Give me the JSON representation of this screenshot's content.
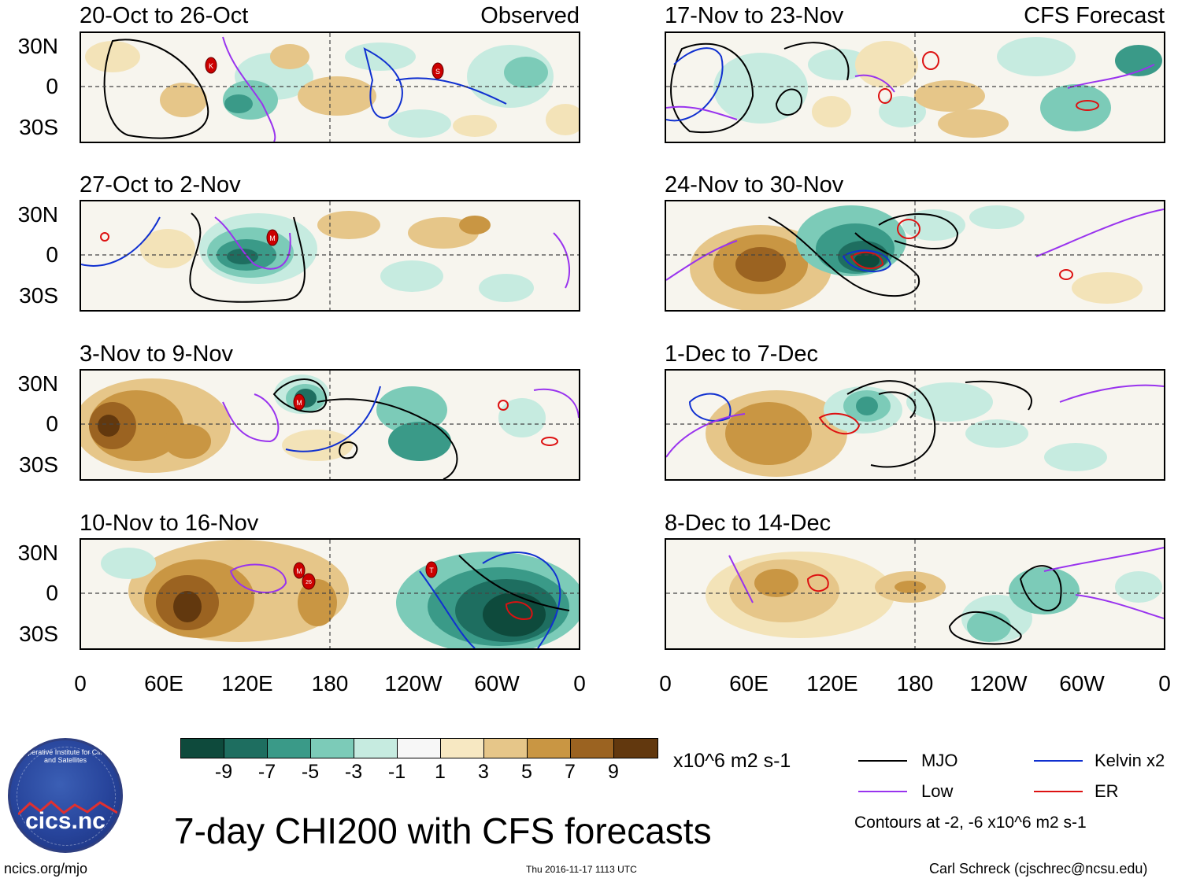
{
  "panels": [
    {
      "id": "p1",
      "title": "20-Oct to 26-Oct",
      "tag": "Observed"
    },
    {
      "id": "p2",
      "title": "27-Oct to 2-Nov",
      "tag": ""
    },
    {
      "id": "p3",
      "title": "3-Nov to 9-Nov",
      "tag": ""
    },
    {
      "id": "p4",
      "title": "10-Nov to 16-Nov",
      "tag": ""
    },
    {
      "id": "p5",
      "title": "17-Nov to 23-Nov",
      "tag": "CFS Forecast"
    },
    {
      "id": "p6",
      "title": "24-Nov to 30-Nov",
      "tag": ""
    },
    {
      "id": "p7",
      "title": "1-Dec to 7-Dec",
      "tag": ""
    },
    {
      "id": "p8",
      "title": "8-Dec to 14-Dec",
      "tag": ""
    }
  ],
  "lat_labels": [
    "30N",
    "0",
    "30S"
  ],
  "lon_labels": [
    "0",
    "60E",
    "120E",
    "180",
    "120W",
    "60W",
    "0"
  ],
  "storm_markers": [
    {
      "panel": "p1",
      "label": "K"
    },
    {
      "panel": "p1",
      "label": "S"
    },
    {
      "panel": "p2",
      "label": "M"
    },
    {
      "panel": "p3",
      "label": "M"
    },
    {
      "panel": "p4",
      "label": "M"
    },
    {
      "panel": "p4",
      "label": "26"
    },
    {
      "panel": "p4",
      "label": "T"
    }
  ],
  "colorbar": {
    "colors": [
      "#0e4a3c",
      "#1e6e60",
      "#3a9a88",
      "#7ccbb8",
      "#c6ebe0",
      "#f7f7f7",
      "#f7e8c2",
      "#e6c689",
      "#c99643",
      "#9b6321",
      "#62380e"
    ],
    "labels": [
      "-9",
      "-7",
      "-5",
      "-3",
      "-1",
      "1",
      "3",
      "5",
      "7",
      "9"
    ],
    "units": "x10^6 m2 s-1"
  },
  "legend": {
    "items": [
      {
        "label": "MJO",
        "color": "#000000"
      },
      {
        "label": "Kelvin x2",
        "color": "#1030d0"
      },
      {
        "label": "Low",
        "color": "#9933ee"
      },
      {
        "label": "ER",
        "color": "#dd1111"
      }
    ],
    "contours_note": "Contours at -2, -6 x10^6 m2 s-1"
  },
  "main_title": "7-day CHI200 with CFS forecasts",
  "logo_text": "cics.nc",
  "logo_arc_text": "Cooperative Institute for Climate and Satellites",
  "footer_left": "ncics.org/mjo",
  "footer_center": "Thu 2016-11-17 1113 UTC",
  "footer_right": "Carl Schreck (cjschrec@ncsu.edu)"
}
